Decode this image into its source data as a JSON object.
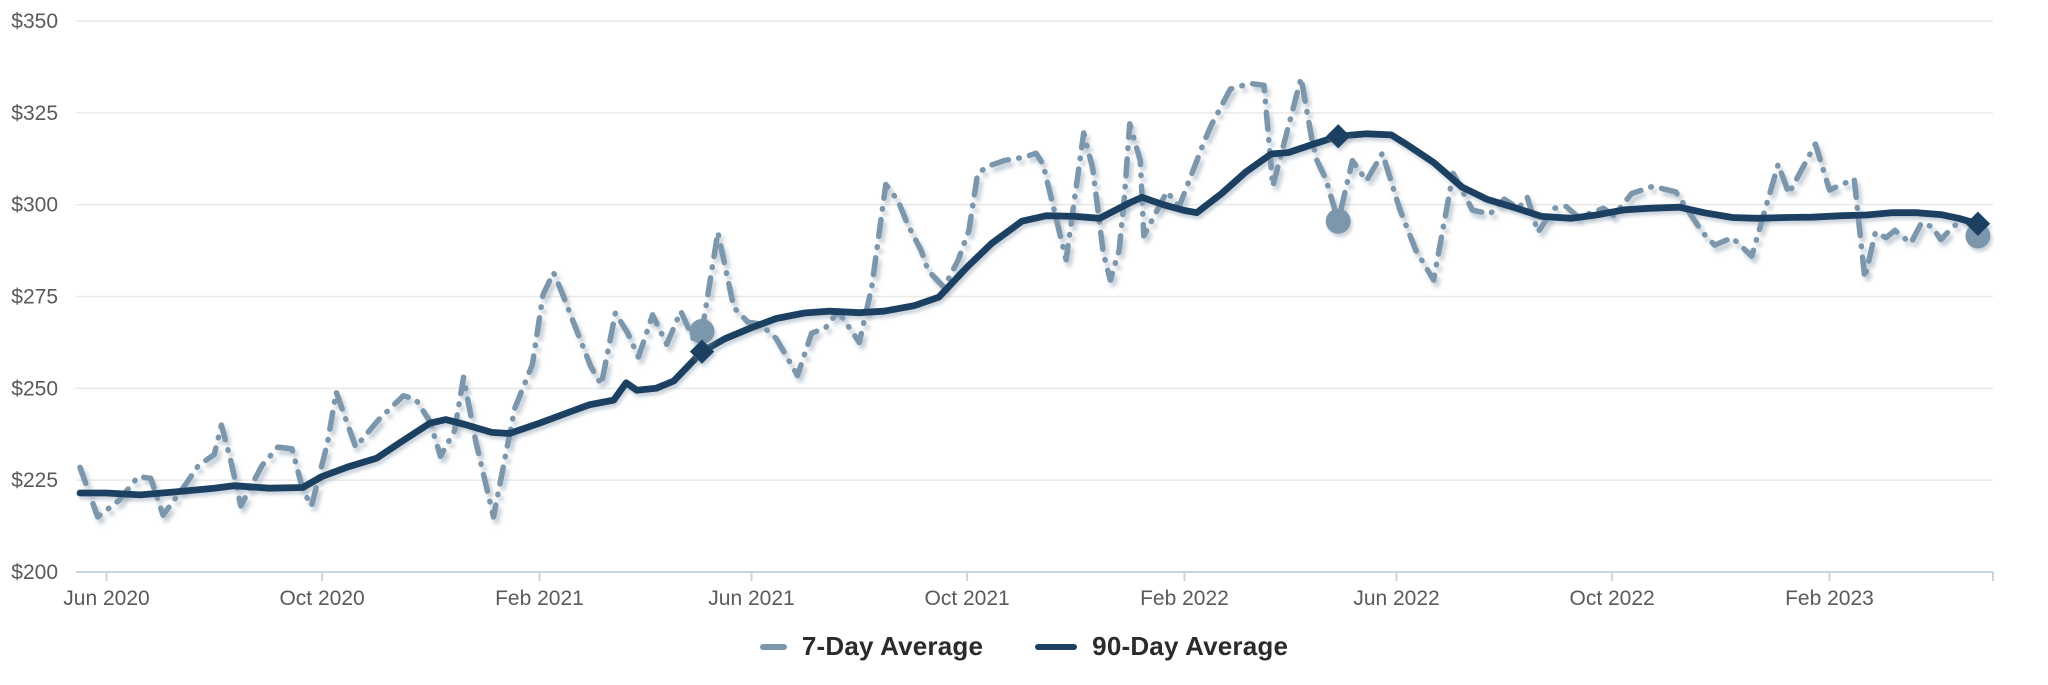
{
  "colors": {
    "background": "#ffffff",
    "grid_line": "#e9e9e9",
    "axis_line": "#c5d5e3",
    "tick_label": "#5a5a5a",
    "legend_text": "#2b2b2b",
    "series_7day": "#7C96AC",
    "series_90day": "#1C4062",
    "shadow": "#8fa1b3"
  },
  "legend": {
    "items": [
      {
        "label": "7-Day Average",
        "swatch": "dashed-swatch-icon"
      },
      {
        "label": "90-Day Average",
        "swatch": "solid-line-swatch-icon"
      }
    ]
  },
  "chart_data": {
    "type": "line",
    "title": "",
    "xlabel": "",
    "ylabel": "",
    "grid": "horizontal-only",
    "legend_position": "bottom-center",
    "y_axis": {
      "min": 200,
      "max": 350,
      "prefix": "$",
      "ticks": [
        {
          "value": 200,
          "label": "$200"
        },
        {
          "value": 225,
          "label": "$225"
        },
        {
          "value": 250,
          "label": "$250"
        },
        {
          "value": 275,
          "label": "$275"
        },
        {
          "value": 300,
          "label": "$300"
        },
        {
          "value": 325,
          "label": "$325"
        },
        {
          "value": 350,
          "label": "$350"
        }
      ]
    },
    "x_axis": {
      "start": "2020-05-17",
      "end": "2023-04-30",
      "ticks": [
        {
          "label": "Jun 2020",
          "date": "2020-06-01"
        },
        {
          "label": "Oct 2020",
          "date": "2020-10-01"
        },
        {
          "label": "Feb 2021",
          "date": "2021-02-01"
        },
        {
          "label": "Jun 2021",
          "date": "2021-06-01"
        },
        {
          "label": "Oct 2021",
          "date": "2021-10-01"
        },
        {
          "label": "Feb 2022",
          "date": "2022-02-01"
        },
        {
          "label": "Jun 2022",
          "date": "2022-06-01"
        },
        {
          "label": "Oct 2022",
          "date": "2022-10-01"
        },
        {
          "label": "Feb 2023",
          "date": "2023-02-01"
        }
      ]
    },
    "series": [
      {
        "name": "7-Day Average",
        "style": "dashed",
        "color": "#7C96AC",
        "points": [
          [
            "2020-05-17",
            228.5
          ],
          [
            "2020-05-27",
            215
          ],
          [
            "2020-06-08",
            219.5
          ],
          [
            "2020-06-19",
            226
          ],
          [
            "2020-06-26",
            225.5
          ],
          [
            "2020-07-03",
            215.5
          ],
          [
            "2020-07-16",
            224
          ],
          [
            "2020-07-23",
            229
          ],
          [
            "2020-08-01",
            232
          ],
          [
            "2020-08-05",
            240
          ],
          [
            "2020-08-10",
            231
          ],
          [
            "2020-08-16",
            218
          ],
          [
            "2020-08-28",
            229
          ],
          [
            "2020-09-06",
            234
          ],
          [
            "2020-09-14",
            233.5
          ],
          [
            "2020-09-20",
            222.5
          ],
          [
            "2020-09-25",
            218
          ],
          [
            "2020-10-04",
            235
          ],
          [
            "2020-10-09",
            249
          ],
          [
            "2020-10-20",
            234
          ],
          [
            "2020-11-02",
            241.5
          ],
          [
            "2020-11-16",
            248
          ],
          [
            "2020-11-23",
            247
          ],
          [
            "2020-12-01",
            241
          ],
          [
            "2020-12-07",
            231.5
          ],
          [
            "2020-12-15",
            238.5
          ],
          [
            "2020-12-20",
            253
          ],
          [
            "2020-12-27",
            235.5
          ],
          [
            "2021-01-06",
            215
          ],
          [
            "2021-01-18",
            244.5
          ],
          [
            "2021-01-28",
            256.5
          ],
          [
            "2021-02-03",
            275.5
          ],
          [
            "2021-02-09",
            281.5
          ],
          [
            "2021-02-14",
            275.8
          ],
          [
            "2021-02-19",
            269.5
          ],
          [
            "2021-03-02",
            256
          ],
          [
            "2021-03-08",
            251
          ],
          [
            "2021-03-16",
            270.5
          ],
          [
            "2021-03-23",
            265
          ],
          [
            "2021-03-29",
            258.5
          ],
          [
            "2021-04-06",
            270
          ],
          [
            "2021-04-14",
            262
          ],
          [
            "2021-04-22",
            271
          ],
          [
            "2021-04-29",
            263.5
          ],
          [
            "2021-05-04",
            265.5
          ],
          [
            "2021-05-13",
            292.5
          ],
          [
            "2021-05-22",
            272
          ],
          [
            "2021-05-30",
            268
          ],
          [
            "2021-06-06",
            267.5
          ],
          [
            "2021-06-15",
            263.5
          ],
          [
            "2021-06-27",
            253.5
          ],
          [
            "2021-07-05",
            265
          ],
          [
            "2021-07-13",
            266.5
          ],
          [
            "2021-07-20",
            271
          ],
          [
            "2021-08-01",
            262.5
          ],
          [
            "2021-08-08",
            277.5
          ],
          [
            "2021-08-16",
            305.5
          ],
          [
            "2021-08-23",
            301
          ],
          [
            "2021-08-28",
            295
          ],
          [
            "2021-09-05",
            287.5
          ],
          [
            "2021-09-09",
            282
          ],
          [
            "2021-09-18",
            277.5
          ],
          [
            "2021-09-26",
            285
          ],
          [
            "2021-10-02",
            293
          ],
          [
            "2021-10-07",
            308.5
          ],
          [
            "2021-10-13",
            310.5
          ],
          [
            "2021-10-22",
            312
          ],
          [
            "2021-11-03",
            313
          ],
          [
            "2021-11-09",
            314
          ],
          [
            "2021-11-13",
            311
          ],
          [
            "2021-11-26",
            285
          ],
          [
            "2021-12-06",
            319.5
          ],
          [
            "2021-12-11",
            310
          ],
          [
            "2021-12-13",
            302.5
          ],
          [
            "2021-12-17",
            287
          ],
          [
            "2021-12-21",
            279.5
          ],
          [
            "2021-12-26",
            287.5
          ],
          [
            "2021-12-29",
            302
          ],
          [
            "2022-01-01",
            322
          ],
          [
            "2022-01-07",
            312
          ],
          [
            "2022-01-09",
            291.5
          ],
          [
            "2022-01-22",
            303.5
          ],
          [
            "2022-01-29",
            299.5
          ],
          [
            "2022-02-12",
            317
          ],
          [
            "2022-02-16",
            321.5
          ],
          [
            "2022-02-27",
            331.5
          ],
          [
            "2022-03-10",
            333
          ],
          [
            "2022-03-18",
            332.5
          ],
          [
            "2022-03-23",
            305
          ],
          [
            "2022-04-08",
            334.5
          ],
          [
            "2022-04-14",
            318
          ],
          [
            "2022-04-17",
            312
          ],
          [
            "2022-04-22",
            307
          ],
          [
            "2022-04-29",
            295.5
          ],
          [
            "2022-05-07",
            312
          ],
          [
            "2022-05-15",
            306.5
          ],
          [
            "2022-05-24",
            314
          ],
          [
            "2022-06-03",
            298.5
          ],
          [
            "2022-06-12",
            287.5
          ],
          [
            "2022-06-22",
            279.5
          ],
          [
            "2022-07-03",
            308.5
          ],
          [
            "2022-07-14",
            298.5
          ],
          [
            "2022-07-24",
            297.5
          ],
          [
            "2022-08-01",
            301.5
          ],
          [
            "2022-08-09",
            299
          ],
          [
            "2022-08-14",
            302
          ],
          [
            "2022-08-20",
            292.5
          ],
          [
            "2022-08-29",
            299
          ],
          [
            "2022-09-05",
            299.5
          ],
          [
            "2022-09-12",
            296.5
          ],
          [
            "2022-09-26",
            299
          ],
          [
            "2022-10-02",
            297
          ],
          [
            "2022-10-12",
            303
          ],
          [
            "2022-10-24",
            305
          ],
          [
            "2022-11-06",
            303.5
          ],
          [
            "2022-11-21",
            292.5
          ],
          [
            "2022-11-28",
            289
          ],
          [
            "2022-12-08",
            291
          ],
          [
            "2022-12-19",
            286
          ],
          [
            "2023-01-03",
            311
          ],
          [
            "2023-01-09",
            303
          ],
          [
            "2023-01-24",
            316.5
          ],
          [
            "2023-02-01",
            304
          ],
          [
            "2023-02-15",
            307
          ],
          [
            "2023-02-21",
            280
          ],
          [
            "2023-02-27",
            292.5
          ],
          [
            "2023-03-05",
            291
          ],
          [
            "2023-03-10",
            293
          ],
          [
            "2023-03-19",
            289.5
          ],
          [
            "2023-03-25",
            295
          ],
          [
            "2023-03-31",
            294
          ],
          [
            "2023-04-05",
            290.5
          ],
          [
            "2023-04-11",
            293.5
          ],
          [
            "2023-04-17",
            296
          ],
          [
            "2023-04-22",
            295.5
          ],
          [
            "2023-04-26",
            291.5
          ]
        ]
      },
      {
        "name": "90-Day Average",
        "style": "solid",
        "color": "#1C4062",
        "points": [
          [
            "2020-05-17",
            221.5
          ],
          [
            "2020-06-01",
            221.5
          ],
          [
            "2020-06-20",
            221
          ],
          [
            "2020-07-10",
            221.8
          ],
          [
            "2020-08-01",
            222.8
          ],
          [
            "2020-08-12",
            223.5
          ],
          [
            "2020-09-01",
            222.8
          ],
          [
            "2020-09-20",
            223
          ],
          [
            "2020-10-01",
            226
          ],
          [
            "2020-10-15",
            228.5
          ],
          [
            "2020-11-01",
            231
          ],
          [
            "2020-11-15",
            235.5
          ],
          [
            "2020-12-01",
            240.5
          ],
          [
            "2020-12-10",
            241.5
          ],
          [
            "2020-12-22",
            240
          ],
          [
            "2021-01-05",
            238
          ],
          [
            "2021-01-15",
            237.7
          ],
          [
            "2021-02-01",
            240.5
          ],
          [
            "2021-02-15",
            243
          ],
          [
            "2021-03-01",
            245.5
          ],
          [
            "2021-03-15",
            246.8
          ],
          [
            "2021-03-22",
            251.5
          ],
          [
            "2021-03-28",
            249.5
          ],
          [
            "2021-04-08",
            250
          ],
          [
            "2021-04-18",
            252
          ],
          [
            "2021-05-04",
            260
          ],
          [
            "2021-05-17",
            263.5
          ],
          [
            "2021-06-01",
            266.5
          ],
          [
            "2021-06-15",
            269
          ],
          [
            "2021-07-01",
            270.5
          ],
          [
            "2021-07-15",
            271
          ],
          [
            "2021-08-01",
            270.6
          ],
          [
            "2021-08-15",
            271
          ],
          [
            "2021-09-01",
            272.5
          ],
          [
            "2021-09-15",
            274.8
          ],
          [
            "2021-10-01",
            283
          ],
          [
            "2021-10-15",
            289.5
          ],
          [
            "2021-11-01",
            295.5
          ],
          [
            "2021-11-15",
            297
          ],
          [
            "2021-12-01",
            296.8
          ],
          [
            "2021-12-15",
            296.3
          ],
          [
            "2022-01-01",
            300.5
          ],
          [
            "2022-01-08",
            302
          ],
          [
            "2022-01-20",
            300
          ],
          [
            "2022-02-01",
            298.4
          ],
          [
            "2022-02-08",
            297.8
          ],
          [
            "2022-02-22",
            303
          ],
          [
            "2022-03-08",
            309
          ],
          [
            "2022-03-22",
            313.8
          ],
          [
            "2022-04-01",
            314.2
          ],
          [
            "2022-04-15",
            316.5
          ],
          [
            "2022-04-29",
            318.6
          ],
          [
            "2022-05-15",
            319.3
          ],
          [
            "2022-05-29",
            319
          ],
          [
            "2022-06-08",
            316
          ],
          [
            "2022-06-22",
            311.5
          ],
          [
            "2022-07-08",
            304.8
          ],
          [
            "2022-07-22",
            301.5
          ],
          [
            "2022-08-08",
            299
          ],
          [
            "2022-08-22",
            296.8
          ],
          [
            "2022-09-08",
            296.3
          ],
          [
            "2022-09-22",
            297.2
          ],
          [
            "2022-10-08",
            298.6
          ],
          [
            "2022-10-22",
            299
          ],
          [
            "2022-11-08",
            299.3
          ],
          [
            "2022-11-22",
            297.8
          ],
          [
            "2022-12-08",
            296.5
          ],
          [
            "2022-12-22",
            296.3
          ],
          [
            "2023-01-08",
            296.5
          ],
          [
            "2023-01-22",
            296.6
          ],
          [
            "2023-02-08",
            297
          ],
          [
            "2023-02-22",
            297.2
          ],
          [
            "2023-03-08",
            297.8
          ],
          [
            "2023-03-22",
            297.8
          ],
          [
            "2023-04-05",
            297.3
          ],
          [
            "2023-04-15",
            296.3
          ],
          [
            "2023-04-26",
            294.8
          ]
        ]
      }
    ],
    "annotations": [
      {
        "series": "7-Day Average",
        "shape": "circle",
        "date": "2021-05-04",
        "value": 265.5
      },
      {
        "series": "90-Day Average",
        "shape": "diamond",
        "date": "2021-05-04",
        "value": 260
      },
      {
        "series": "7-Day Average",
        "shape": "circle",
        "date": "2022-04-29",
        "value": 295.5
      },
      {
        "series": "90-Day Average",
        "shape": "diamond",
        "date": "2022-04-29",
        "value": 318.6
      },
      {
        "series": "7-Day Average",
        "shape": "circle",
        "date": "2023-04-26",
        "value": 291.5
      },
      {
        "series": "90-Day Average",
        "shape": "diamond",
        "date": "2023-04-26",
        "value": 294.8
      }
    ]
  }
}
